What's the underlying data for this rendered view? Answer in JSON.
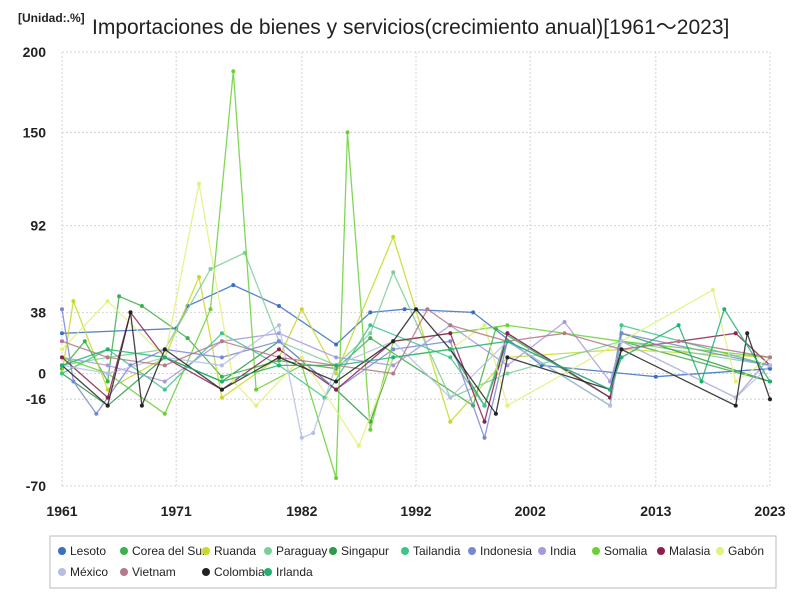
{
  "chart_data": {
    "type": "line",
    "title": "Importaciones de bienes y servicios(crecimiento anual)[1961～2023]",
    "unit_label": "[Unidad:.%]",
    "xlabel": "",
    "ylabel": "",
    "xlim": [
      1961,
      2023
    ],
    "ylim": [
      -70,
      200
    ],
    "x_ticks": [
      1961,
      1971,
      1982,
      1992,
      2002,
      2013,
      2023
    ],
    "y_ticks": [
      -70,
      -16,
      0,
      38,
      92,
      150,
      200
    ],
    "grid": true,
    "legend_position": "bottom",
    "series": [
      {
        "name": "Lesoto",
        "color": "#3a6fc4",
        "points": [
          [
            1961,
            25
          ],
          [
            1971,
            28
          ],
          [
            1972,
            42
          ],
          [
            1976,
            55
          ],
          [
            1980,
            42
          ],
          [
            1985,
            18
          ],
          [
            1988,
            38
          ],
          [
            1991,
            40
          ],
          [
            1997,
            38
          ],
          [
            2003,
            5
          ],
          [
            2013,
            -2
          ],
          [
            2023,
            3
          ]
        ]
      },
      {
        "name": "Corea del Sur",
        "color": "#3cb04a",
        "points": [
          [
            1961,
            3
          ],
          [
            1963,
            20
          ],
          [
            1965,
            -5
          ],
          [
            1966,
            48
          ],
          [
            1968,
            42
          ],
          [
            1972,
            22
          ],
          [
            1975,
            -2
          ],
          [
            1980,
            8
          ],
          [
            1985,
            3
          ],
          [
            1988,
            22
          ],
          [
            1997,
            -20
          ],
          [
            1999,
            28
          ],
          [
            2009,
            -15
          ],
          [
            2010,
            20
          ],
          [
            2023,
            -5
          ]
        ]
      },
      {
        "name": "Ruanda",
        "color": "#c8d82a",
        "points": [
          [
            1961,
            0
          ],
          [
            1962,
            45
          ],
          [
            1965,
            -10
          ],
          [
            1970,
            10
          ],
          [
            1973,
            60
          ],
          [
            1975,
            -15
          ],
          [
            1980,
            10
          ],
          [
            1982,
            40
          ],
          [
            1985,
            0
          ],
          [
            1990,
            85
          ],
          [
            1995,
            -30
          ],
          [
            2000,
            10
          ],
          [
            2010,
            15
          ],
          [
            2023,
            10
          ]
        ]
      },
      {
        "name": "Paraguay",
        "color": "#7ccf9a",
        "points": [
          [
            1961,
            5
          ],
          [
            1965,
            10
          ],
          [
            1970,
            15
          ],
          [
            1974,
            65
          ],
          [
            1977,
            75
          ],
          [
            1980,
            20
          ],
          [
            1985,
            5
          ],
          [
            1988,
            25
          ],
          [
            1990,
            63
          ],
          [
            1995,
            -15
          ],
          [
            2000,
            0
          ],
          [
            2010,
            20
          ],
          [
            2023,
            5
          ]
        ]
      },
      {
        "name": "Singapur",
        "color": "#2f9a4a",
        "points": [
          [
            1961,
            0
          ],
          [
            1965,
            -20
          ],
          [
            1970,
            10
          ],
          [
            1975,
            -5
          ],
          [
            1980,
            20
          ],
          [
            1985,
            -10
          ],
          [
            1988,
            -30
          ],
          [
            1990,
            10
          ],
          [
            1995,
            15
          ],
          [
            1998,
            -20
          ],
          [
            2000,
            20
          ],
          [
            2009,
            -20
          ],
          [
            2010,
            25
          ],
          [
            2023,
            -5
          ]
        ]
      },
      {
        "name": "Tailandia",
        "color": "#3fc48a",
        "points": [
          [
            1961,
            0
          ],
          [
            1965,
            15
          ],
          [
            1970,
            -10
          ],
          [
            1975,
            25
          ],
          [
            1980,
            5
          ],
          [
            1984,
            -15
          ],
          [
            1988,
            30
          ],
          [
            1995,
            10
          ],
          [
            1998,
            -20
          ],
          [
            2000,
            25
          ],
          [
            2009,
            -15
          ],
          [
            2010,
            30
          ],
          [
            2023,
            5
          ]
        ]
      },
      {
        "name": "Indonesia",
        "color": "#7a86d6",
        "points": [
          [
            1961,
            40
          ],
          [
            1962,
            -5
          ],
          [
            1964,
            -25
          ],
          [
            1967,
            5
          ],
          [
            1970,
            15
          ],
          [
            1975,
            10
          ],
          [
            1980,
            20
          ],
          [
            1985,
            -10
          ],
          [
            1990,
            15
          ],
          [
            1995,
            20
          ],
          [
            1998,
            -40
          ],
          [
            2000,
            20
          ],
          [
            2009,
            -10
          ],
          [
            2010,
            25
          ],
          [
            2023,
            5
          ]
        ]
      },
      {
        "name": "India",
        "color": "#a898e0",
        "points": [
          [
            1961,
            10
          ],
          [
            1965,
            5
          ],
          [
            1970,
            -5
          ],
          [
            1975,
            20
          ],
          [
            1980,
            25
          ],
          [
            1985,
            10
          ],
          [
            1990,
            5
          ],
          [
            1995,
            30
          ],
          [
            2000,
            5
          ],
          [
            2005,
            32
          ],
          [
            2009,
            -5
          ],
          [
            2010,
            20
          ],
          [
            2020,
            -15
          ],
          [
            2023,
            10
          ]
        ]
      },
      {
        "name": "Somalia",
        "color": "#6ad038",
        "points": [
          [
            1961,
            10
          ],
          [
            1965,
            0
          ],
          [
            1970,
            -25
          ],
          [
            1974,
            40
          ],
          [
            1976,
            188
          ],
          [
            1978,
            -10
          ],
          [
            1982,
            5
          ],
          [
            1985,
            -65
          ],
          [
            1986,
            150
          ],
          [
            1988,
            -35
          ],
          [
            1990,
            20
          ],
          [
            2000,
            30
          ],
          [
            2010,
            20
          ],
          [
            2023,
            10
          ]
        ]
      },
      {
        "name": "Malasia",
        "color": "#8b2050",
        "points": [
          [
            1961,
            10
          ],
          [
            1965,
            -15
          ],
          [
            1967,
            38
          ],
          [
            1970,
            10
          ],
          [
            1975,
            -10
          ],
          [
            1980,
            15
          ],
          [
            1985,
            -10
          ],
          [
            1990,
            20
          ],
          [
            1995,
            25
          ],
          [
            1998,
            -30
          ],
          [
            2000,
            25
          ],
          [
            2009,
            -15
          ],
          [
            2010,
            15
          ],
          [
            2020,
            25
          ],
          [
            2023,
            5
          ]
        ]
      },
      {
        "name": "Gabón",
        "color": "#e4f07a",
        "points": [
          [
            1961,
            15
          ],
          [
            1965,
            45
          ],
          [
            1970,
            10
          ],
          [
            1973,
            118
          ],
          [
            1976,
            -5
          ],
          [
            1978,
            -20
          ],
          [
            1982,
            10
          ],
          [
            1987,
            -45
          ],
          [
            1990,
            10
          ],
          [
            1995,
            15
          ],
          [
            1998,
            30
          ],
          [
            2000,
            -20
          ],
          [
            2010,
            20
          ],
          [
            2018,
            52
          ],
          [
            2020,
            -5
          ],
          [
            2023,
            10
          ]
        ]
      },
      {
        "name": "México",
        "color": "#b6bee4",
        "points": [
          [
            1961,
            5
          ],
          [
            1965,
            0
          ],
          [
            1970,
            10
          ],
          [
            1975,
            5
          ],
          [
            1980,
            30
          ],
          [
            1982,
            -40
          ],
          [
            1983,
            -37
          ],
          [
            1985,
            5
          ],
          [
            1990,
            20
          ],
          [
            1995,
            -15
          ],
          [
            2000,
            20
          ],
          [
            2009,
            -20
          ],
          [
            2010,
            20
          ],
          [
            2020,
            -15
          ],
          [
            2023,
            5
          ]
        ]
      },
      {
        "name": "Vietnam",
        "color": "#b27a8a",
        "points": [
          [
            1961,
            20
          ],
          [
            1965,
            10
          ],
          [
            1970,
            5
          ],
          [
            1975,
            20
          ],
          [
            1980,
            10
          ],
          [
            1985,
            5
          ],
          [
            1990,
            0
          ],
          [
            1993,
            40
          ],
          [
            1995,
            30
          ],
          [
            2000,
            20
          ],
          [
            2005,
            25
          ],
          [
            2010,
            15
          ],
          [
            2015,
            20
          ],
          [
            2023,
            10
          ]
        ]
      },
      {
        "name": "Colombia",
        "color": "#222222",
        "points": [
          [
            1961,
            5
          ],
          [
            1965,
            -20
          ],
          [
            1967,
            38
          ],
          [
            1968,
            -20
          ],
          [
            1970,
            15
          ],
          [
            1975,
            -10
          ],
          [
            1980,
            10
          ],
          [
            1985,
            -5
          ],
          [
            1990,
            20
          ],
          [
            1992,
            40
          ],
          [
            1995,
            15
          ],
          [
            1999,
            -25
          ],
          [
            2000,
            10
          ],
          [
            2009,
            -10
          ],
          [
            2010,
            15
          ],
          [
            2020,
            -20
          ],
          [
            2021,
            25
          ],
          [
            2023,
            -16
          ]
        ]
      },
      {
        "name": "Irlanda",
        "color": "#20b070",
        "points": [
          [
            1961,
            5
          ],
          [
            1965,
            15
          ],
          [
            1970,
            10
          ],
          [
            1975,
            -5
          ],
          [
            1980,
            5
          ],
          [
            1985,
            5
          ],
          [
            1990,
            10
          ],
          [
            1995,
            15
          ],
          [
            2000,
            20
          ],
          [
            2009,
            -10
          ],
          [
            2010,
            10
          ],
          [
            2015,
            30
          ],
          [
            2017,
            -5
          ],
          [
            2019,
            40
          ],
          [
            2023,
            -5
          ]
        ]
      }
    ]
  }
}
